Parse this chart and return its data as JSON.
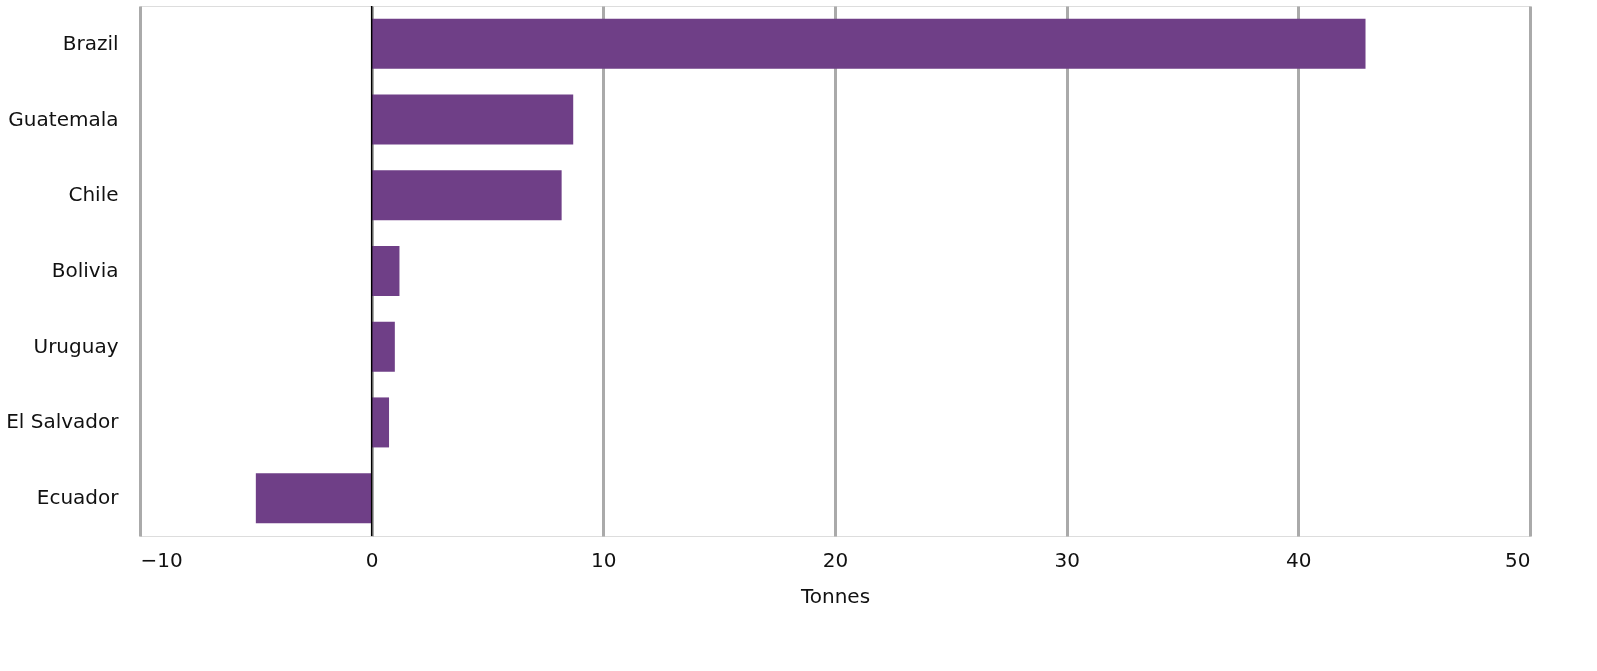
{
  "chart_data": {
    "type": "bar",
    "orientation": "horizontal",
    "xlabel": "Tonnes",
    "categories": [
      "Brazil",
      "Guatemala",
      "Chile",
      "Bolivia",
      "Uruguay",
      "El Salvador",
      "Ecuador"
    ],
    "values": [
      42.9,
      8.7,
      8.2,
      1.2,
      1.0,
      0.75,
      -5.0
    ],
    "color": "#6f3f87",
    "xlim": [
      -10,
      50
    ],
    "xticks": [
      -10,
      0,
      10,
      20,
      30,
      40,
      50
    ],
    "grid": "x",
    "ref_lines": [
      {
        "axis": "x",
        "value": 0,
        "color": "#000000"
      }
    ]
  }
}
